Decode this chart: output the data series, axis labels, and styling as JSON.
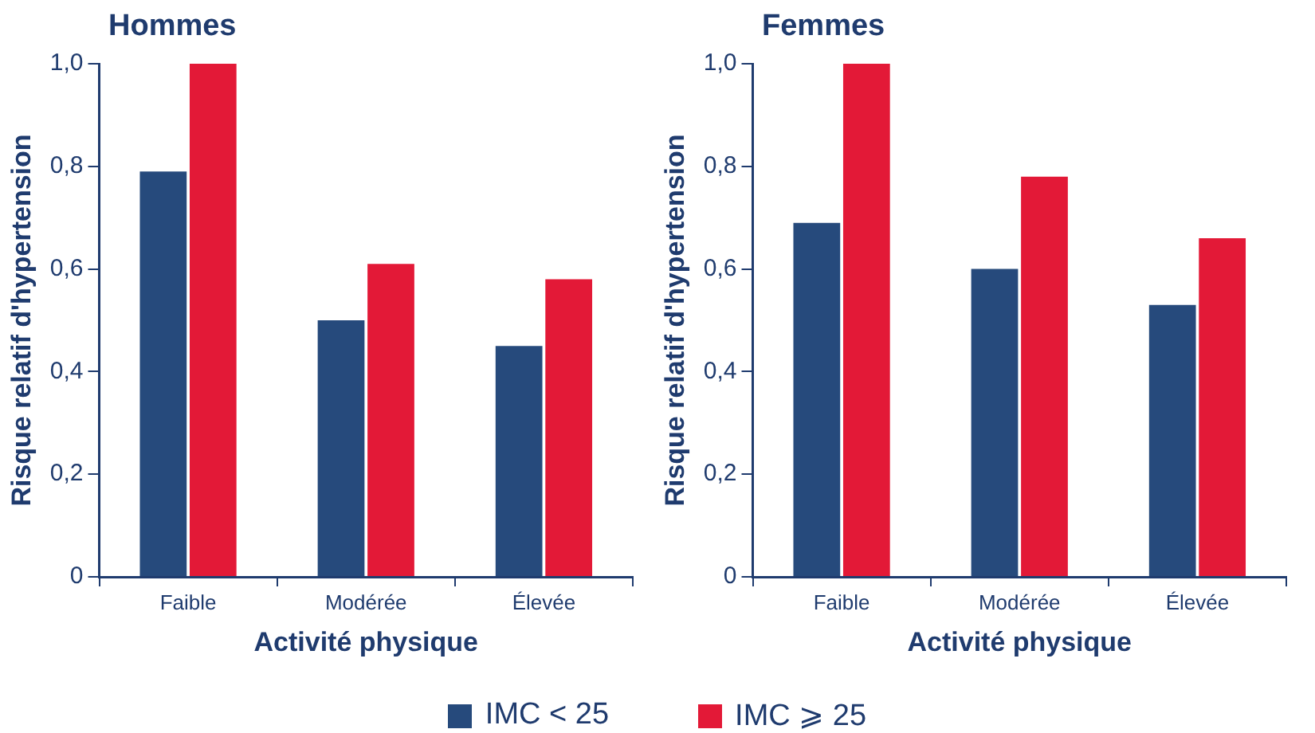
{
  "chart_data": [
    {
      "type": "bar",
      "title": "Hommes",
      "xlabel": "Activité physique",
      "ylabel": "Risque relatif d'hypertension",
      "categories": [
        "Faible",
        "Modérée",
        "Élevée"
      ],
      "series": [
        {
          "name": "IMC < 25",
          "color": "#264a7c",
          "values": [
            0.79,
            0.5,
            0.45
          ]
        },
        {
          "name": "IMC ⩾ 25",
          "color": "#e31937",
          "values": [
            1.0,
            0.61,
            0.58
          ]
        }
      ],
      "ylim": [
        0,
        1.0
      ],
      "yticks": [
        0,
        {
          "value": 0.2,
          "label": "0,2"
        },
        {
          "value": 0.4,
          "label": "0,4"
        },
        {
          "value": 0.6,
          "label": "0,6"
        },
        {
          "value": 0.8,
          "label": "0,8"
        },
        {
          "value": 1.0,
          "label": "1,0"
        }
      ],
      "grid": false,
      "legend": "bottom"
    },
    {
      "type": "bar",
      "title": "Femmes",
      "xlabel": "Activité physique",
      "ylabel": "Risque relatif d'hypertension",
      "categories": [
        "Faible",
        "Modérée",
        "Élevée"
      ],
      "series": [
        {
          "color": "#264a7c",
          "values": [
            0.69,
            0.6,
            0.53
          ]
        },
        {
          "color": "#e31937",
          "values": [
            1.0,
            0.78,
            0.66
          ]
        }
      ],
      "ylim": [
        0,
        1.0
      ],
      "yticks": [
        0,
        {
          "value": 0.2,
          "label": "0,2"
        },
        {
          "value": 0.4,
          "label": "0,4"
        },
        {
          "value": 0.6,
          "label": "0,6"
        },
        {
          "value": 0.8,
          "label": "0,8"
        },
        {
          "value": 1.0,
          "label": "1,0"
        }
      ],
      "grid": false
    }
  ]
}
